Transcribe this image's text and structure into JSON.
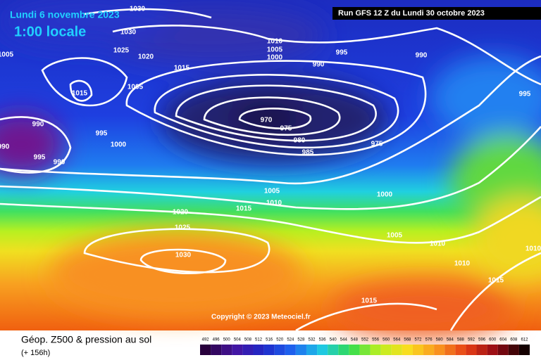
{
  "header": {
    "date": "Lundi 6 novembre 2023",
    "time": "1:00 locale",
    "run": "Run GFS 12 Z du Lundi 30 octobre 2023"
  },
  "copyright": "Copyright © 2023 Meteociel.fr",
  "footer": {
    "title": "Géop. Z500 & pression au sol",
    "lead": "(+ 156h)"
  },
  "isobar_labels": [
    1030,
    1030,
    1025,
    1020,
    1005,
    1015,
    1010,
    1005,
    1000,
    995,
    990,
    990,
    1005,
    1015,
    995,
    970,
    975,
    990,
    995,
    980,
    1000,
    985,
    975,
    990,
    995,
    990,
    1005,
    1000,
    1010,
    1015,
    1020,
    1025,
    1005,
    1010,
    1010,
    1030,
    1010,
    1015,
    1015
  ],
  "scale": [
    492,
    496,
    500,
    504,
    508,
    512,
    516,
    520,
    524,
    528,
    532,
    536,
    540,
    544,
    548,
    552,
    556,
    560,
    564,
    568,
    572,
    576,
    580,
    584,
    588,
    592,
    596,
    600,
    604,
    608,
    612
  ]
}
